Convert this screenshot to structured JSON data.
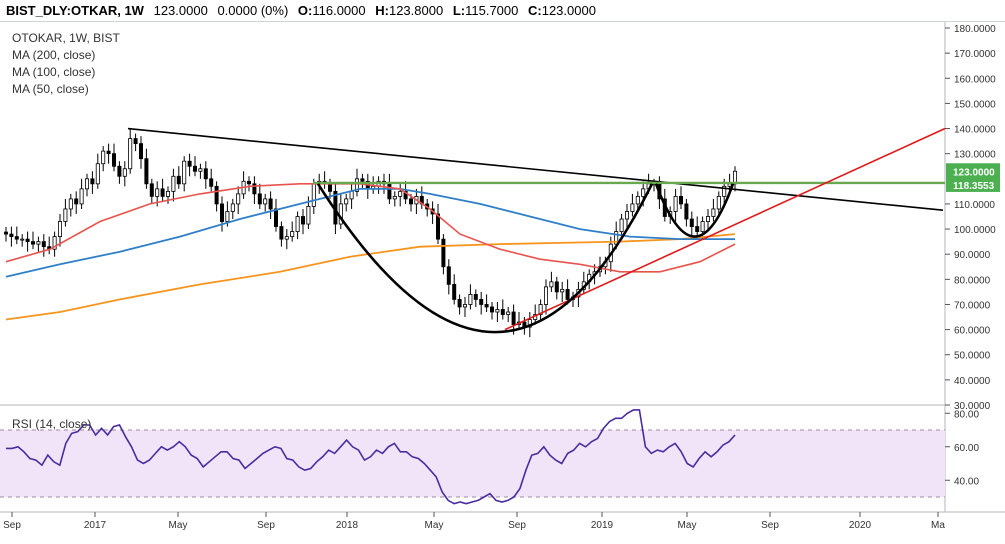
{
  "header": {
    "symbol": "BIST_DLY:OTKAR, 1W",
    "last": "123.0000",
    "change": "0.0000 (0%)",
    "open_label": "O:",
    "open": "116.0000",
    "high_label": "H:",
    "high": "123.8000",
    "low_label": "L:",
    "low": "115.7000",
    "close_label": "C:",
    "close": "123.0000"
  },
  "legend": {
    "title": "OTOKAR, 1W, BIST",
    "ma200": "MA (200, close)",
    "ma100": "MA (100, close)",
    "ma50": "MA (50, close)"
  },
  "rsi_legend": "RSI (14, close)",
  "price_axis": {
    "ticks": [
      "180.0000",
      "170.0000",
      "160.0000",
      "150.0000",
      "140.0000",
      "130.0000",
      "110.0000",
      "100.0000",
      "90.0000",
      "80.0000",
      "70.0000",
      "60.0000",
      "50.0000",
      "40.0000",
      "30.0000"
    ],
    "tick_values": [
      180,
      170,
      160,
      150,
      140,
      130,
      110,
      100,
      90,
      80,
      70,
      60,
      50,
      40,
      30
    ],
    "last_price_label": "123.0000",
    "level_label": "118.3553"
  },
  "rsi_axis": {
    "ticks": [
      "80.00",
      "60.00",
      "40.00"
    ],
    "tick_values": [
      80,
      60,
      40
    ]
  },
  "time_axis": {
    "labels": [
      "Sep",
      "2017",
      "May",
      "Sep",
      "2018",
      "May",
      "Sep",
      "2019",
      "May",
      "Sep",
      "2020",
      "Ma"
    ]
  },
  "colors": {
    "up": "#000000",
    "down": "#000000",
    "ma200": "#f7941d",
    "ma100": "#2f7fc8",
    "ma50": "#e8544d",
    "trend_black": "#000000",
    "trend_red": "#e01a1a",
    "level_green": "#6aa84f",
    "rsi_line": "#4a2ca0",
    "rsi_band": "#f2e4f8",
    "last_badge": "#4caf50"
  },
  "chart_data": [
    {
      "type": "candlestick",
      "title": "OTOKAR, 1W, BIST",
      "x_axis": "weeks (Aug 2016 – May 2020)",
      "ylim": [
        30,
        180
      ],
      "last_price": 123.0,
      "horizontal_level": 118.3553,
      "ohlc_close_approx": [
        [
          0,
          98
        ],
        [
          1,
          97
        ],
        [
          2,
          96
        ],
        [
          3,
          96
        ],
        [
          4,
          95
        ],
        [
          5,
          94
        ],
        [
          6,
          95
        ],
        [
          7,
          93
        ],
        [
          8,
          92
        ],
        [
          9,
          97
        ],
        [
          10,
          103
        ],
        [
          11,
          108
        ],
        [
          12,
          112
        ],
        [
          13,
          110
        ],
        [
          14,
          116
        ],
        [
          15,
          120
        ],
        [
          16,
          118
        ],
        [
          17,
          126
        ],
        [
          18,
          131
        ],
        [
          19,
          130
        ],
        [
          20,
          125
        ],
        [
          21,
          121
        ],
        [
          22,
          124
        ],
        [
          23,
          136
        ],
        [
          24,
          134
        ],
        [
          25,
          128
        ],
        [
          26,
          118
        ],
        [
          27,
          113
        ],
        [
          28,
          116
        ],
        [
          29,
          113
        ],
        [
          30,
          115
        ],
        [
          31,
          121
        ],
        [
          32,
          118
        ],
        [
          33,
          127
        ],
        [
          34,
          125
        ],
        [
          35,
          123
        ],
        [
          36,
          124
        ],
        [
          37,
          120
        ],
        [
          38,
          117
        ],
        [
          39,
          110
        ],
        [
          40,
          103
        ],
        [
          41,
          107
        ],
        [
          42,
          110
        ],
        [
          43,
          114
        ],
        [
          44,
          119
        ],
        [
          45,
          118
        ],
        [
          46,
          114
        ],
        [
          47,
          110
        ],
        [
          48,
          112
        ],
        [
          49,
          108
        ],
        [
          50,
          101
        ],
        [
          51,
          96
        ],
        [
          52,
          97
        ],
        [
          53,
          99
        ],
        [
          54,
          105
        ],
        [
          55,
          102
        ],
        [
          56,
          109
        ],
        [
          57,
          118
        ],
        [
          58,
          119
        ],
        [
          59,
          118
        ],
        [
          60,
          115
        ],
        [
          61,
          102
        ],
        [
          62,
          110
        ],
        [
          63,
          112
        ],
        [
          64,
          115
        ],
        [
          65,
          120
        ],
        [
          66,
          119
        ],
        [
          67,
          116
        ],
        [
          68,
          117
        ],
        [
          69,
          119
        ],
        [
          70,
          118
        ],
        [
          71,
          112
        ],
        [
          72,
          113
        ],
        [
          73,
          115
        ],
        [
          74,
          112
        ],
        [
          75,
          110
        ],
        [
          76,
          113
        ],
        [
          77,
          110
        ],
        [
          78,
          108
        ],
        [
          79,
          106
        ],
        [
          80,
          96
        ],
        [
          81,
          85
        ],
        [
          82,
          78
        ],
        [
          83,
          72
        ],
        [
          84,
          69
        ],
        [
          85,
          70
        ],
        [
          86,
          74
        ],
        [
          87,
          72
        ],
        [
          88,
          70
        ],
        [
          89,
          69
        ],
        [
          90,
          67
        ],
        [
          91,
          68
        ],
        [
          92,
          66
        ],
        [
          93,
          67
        ],
        [
          94,
          62
        ],
        [
          95,
          63
        ],
        [
          96,
          61
        ],
        [
          97,
          64
        ],
        [
          98,
          66
        ],
        [
          99,
          70
        ],
        [
          100,
          77
        ],
        [
          101,
          79
        ],
        [
          102,
          75
        ],
        [
          103,
          76
        ],
        [
          104,
          72
        ],
        [
          105,
          73
        ],
        [
          106,
          76
        ],
        [
          107,
          79
        ],
        [
          108,
          82
        ],
        [
          109,
          83
        ],
        [
          110,
          85
        ],
        [
          111,
          87
        ],
        [
          112,
          94
        ],
        [
          113,
          99
        ],
        [
          114,
          104
        ],
        [
          115,
          107
        ],
        [
          116,
          110
        ],
        [
          117,
          113
        ],
        [
          118,
          116
        ],
        [
          119,
          118
        ],
        [
          120,
          118
        ],
        [
          121,
          112
        ],
        [
          122,
          105
        ],
        [
          123,
          107
        ],
        [
          124,
          113
        ],
        [
          125,
          110
        ],
        [
          126,
          104
        ],
        [
          127,
          101
        ],
        [
          128,
          99
        ],
        [
          129,
          103
        ],
        [
          130,
          105
        ],
        [
          131,
          108
        ],
        [
          132,
          113
        ],
        [
          133,
          117
        ],
        [
          134,
          118
        ],
        [
          135,
          123
        ]
      ]
    },
    {
      "type": "line",
      "title": "RSI (14, close)",
      "ylim": [
        20,
        85
      ],
      "reference_lines": [
        70,
        30
      ],
      "values_approx": [
        59,
        59,
        60,
        57,
        53,
        52,
        49,
        55,
        51,
        49,
        62,
        68,
        69,
        73,
        73,
        67,
        71,
        67,
        72,
        73,
        66,
        60,
        52,
        50,
        52,
        56,
        60,
        58,
        60,
        63,
        60,
        55,
        53,
        48,
        51,
        54,
        57,
        57,
        53,
        52,
        47,
        50,
        53,
        56,
        58,
        60,
        59,
        53,
        52,
        48,
        46,
        47,
        51,
        54,
        58,
        56,
        60,
        64,
        60,
        58,
        52,
        54,
        58,
        56,
        60,
        62,
        57,
        57,
        54,
        53,
        50,
        46,
        42,
        33,
        28,
        26,
        27,
        26,
        27,
        28,
        30,
        32,
        28,
        27,
        28,
        30,
        35,
        46,
        55,
        56,
        60,
        55,
        52,
        50,
        56,
        58,
        62,
        60,
        63,
        65,
        71,
        75,
        77,
        77,
        80,
        82,
        82,
        60,
        56,
        58,
        57,
        60,
        62,
        57,
        50,
        48,
        53,
        57,
        54,
        57,
        61,
        63,
        67
      ]
    }
  ]
}
